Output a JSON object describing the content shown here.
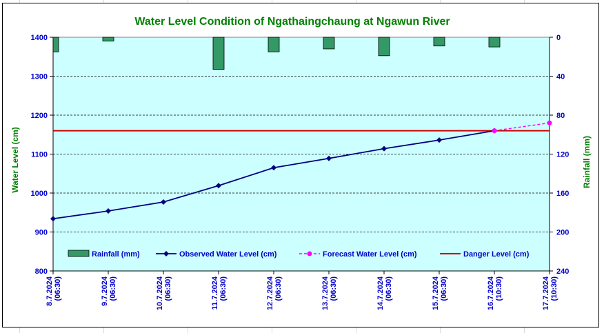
{
  "chart_data": {
    "type": "combo",
    "title": "Water Level Condition of  Ngathaingchaung at Ngawun River",
    "ylabel_left": "Water Level (cm)",
    "ylabel_right": "Rainfall (mm)",
    "ylim_left": [
      800,
      1400
    ],
    "yticks_left": [
      800,
      900,
      1000,
      1100,
      1200,
      1300,
      1400
    ],
    "ylim_right": [
      0,
      240
    ],
    "right_axis_inverted": true,
    "yticks_right": [
      0,
      40,
      80,
      120,
      160,
      200,
      240
    ],
    "categories": [
      [
        "8.7.2024",
        "(06:30)"
      ],
      [
        "9.7.2024",
        "(06:30)"
      ],
      [
        "10.7.2024",
        "(06:30)"
      ],
      [
        "11.7.2024",
        "(06:30)"
      ],
      [
        "12.7.2024",
        "(06:30)"
      ],
      [
        "13.7.2024",
        "(06:30)"
      ],
      [
        "14.7.2024",
        "(06:30)"
      ],
      [
        "15.7.2024",
        "(06:30)"
      ],
      [
        "16.7.2024",
        "(10:30)"
      ],
      [
        "17.7.2024",
        "(10:30)"
      ]
    ],
    "series": [
      {
        "name": "Rainfall (mm)",
        "type": "bar",
        "axis": "right",
        "color": "#339966",
        "values": [
          15,
          4,
          0,
          33,
          15,
          12,
          19,
          9,
          10,
          null
        ]
      },
      {
        "name": "Observed Water Level (cm)",
        "type": "line",
        "axis": "left",
        "color": "#000080",
        "values": [
          934,
          954,
          977,
          1019,
          1065,
          1089,
          1114,
          1136,
          1160,
          null
        ]
      },
      {
        "name": "Forecast Water Level (cm)",
        "type": "line-dashed",
        "axis": "left",
        "color": "#ff00ff",
        "values": [
          null,
          null,
          null,
          null,
          null,
          null,
          null,
          null,
          1160,
          1180
        ]
      },
      {
        "name": "Danger Level (cm)",
        "type": "hline",
        "axis": "left",
        "color": "#cc0000",
        "value": 1160
      }
    ],
    "grid": true,
    "legend_position": "bottom-inside"
  }
}
